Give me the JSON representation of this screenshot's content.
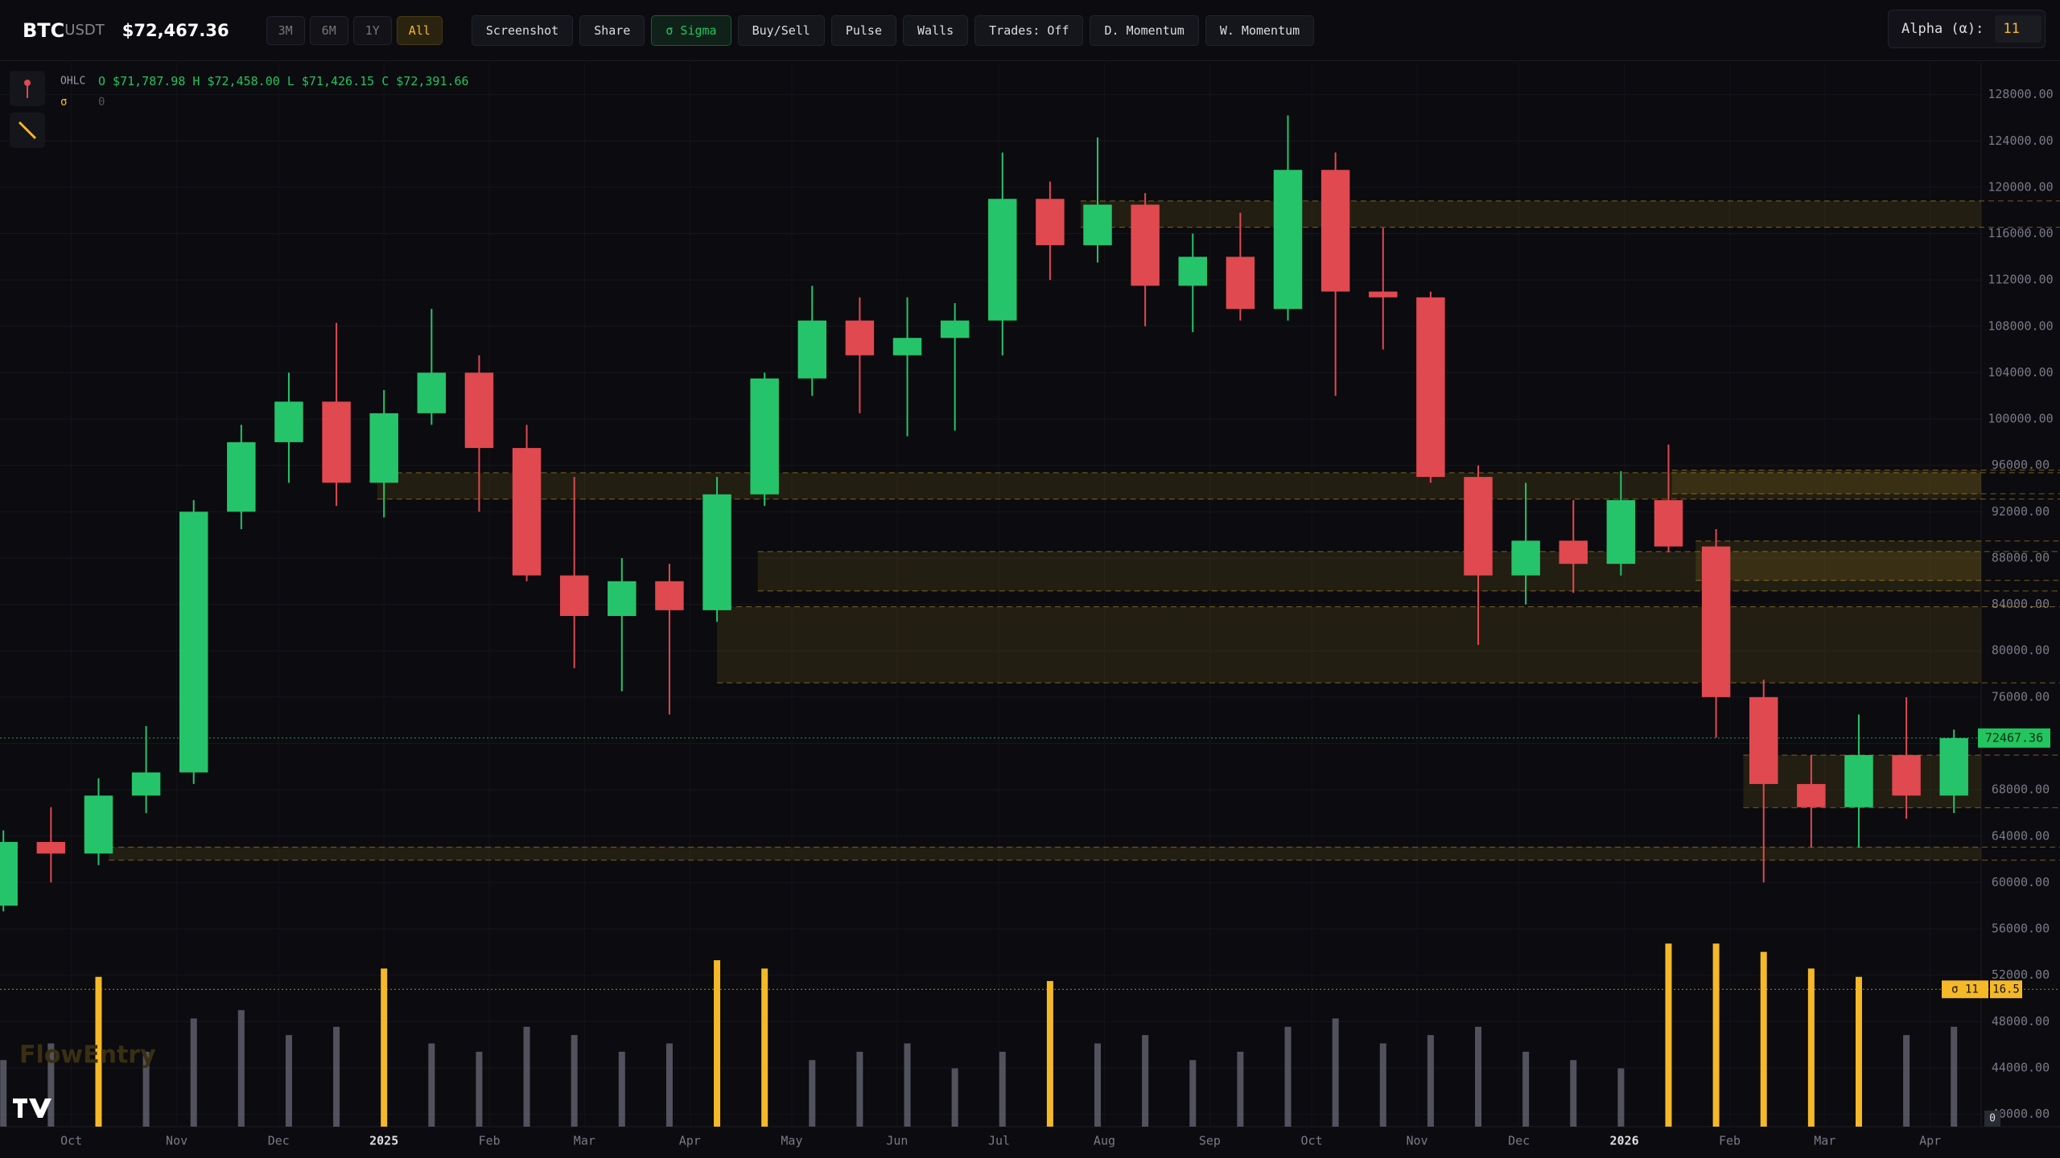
{
  "header": {
    "symbol": "BTC",
    "quote": "USDT",
    "price": "$72,467.36",
    "ranges": [
      "3M",
      "6M",
      "1Y",
      "All"
    ],
    "active_range": 3,
    "buttons": [
      "Screenshot",
      "Share",
      "σ Sigma",
      "Buy/Sell",
      "Pulse",
      "Walls",
      "Trades: Off",
      "D. Momentum",
      "W. Momentum"
    ],
    "alpha_label": "Alpha (α):",
    "alpha_value": "11"
  },
  "legend": {
    "label": "OHLC",
    "open": "O $71,787.98",
    "high": "H $72,458.00",
    "low": "L $71,426.15",
    "close": "C $72,391.66",
    "sigma": "σ",
    "sigma_value": "0"
  },
  "watermark": "FlowEntry",
  "chart_data": {
    "type": "candlestick",
    "x": [
      "2024-09-11",
      "2024-09-25",
      "2024-10-09",
      "2024-10-23",
      "2024-11-06",
      "2024-11-20",
      "2024-12-04",
      "2024-12-18",
      "2025-01-01",
      "2025-01-15",
      "2025-01-29",
      "2025-02-12",
      "2025-02-26",
      "2025-03-12",
      "2025-03-26",
      "2025-04-09",
      "2025-04-23",
      "2025-05-07",
      "2025-05-21",
      "2025-06-04",
      "2025-06-18",
      "2025-07-02",
      "2025-07-16",
      "2025-07-30",
      "2025-08-13",
      "2025-08-27",
      "2025-09-10",
      "2025-09-24",
      "2025-10-08",
      "2025-10-22",
      "2025-11-05",
      "2025-11-19",
      "2025-12-03",
      "2025-12-17",
      "2025-12-31",
      "2026-01-14",
      "2026-01-28",
      "2026-02-11",
      "2026-02-25",
      "2026-03-11",
      "2026-03-25",
      "2026-04-08"
    ],
    "open": [
      58000,
      63500,
      62500,
      67500,
      69500,
      92000,
      98000,
      101500,
      94500,
      100500,
      104000,
      97500,
      86500,
      83000,
      86000,
      83500,
      93500,
      103500,
      108500,
      105500,
      107000,
      108500,
      119000,
      115000,
      118500,
      111500,
      114000,
      109500,
      121500,
      111000,
      110500,
      95000,
      86500,
      89500,
      87500,
      93000,
      89000,
      76000,
      68500,
      66500,
      71000,
      67500
    ],
    "high": [
      64500,
      66500,
      69000,
      73500,
      93000,
      99500,
      104000,
      108300,
      102500,
      109500,
      105500,
      99500,
      95000,
      88000,
      87500,
      95000,
      104000,
      111500,
      110500,
      110500,
      110000,
      123000,
      120500,
      124300,
      119500,
      116000,
      117800,
      126200,
      123000,
      116500,
      111000,
      96000,
      94500,
      93000,
      95500,
      97800,
      90500,
      77500,
      71000,
      74500,
      76000,
      73200
    ],
    "low": [
      57500,
      60000,
      61500,
      66000,
      68500,
      90500,
      94500,
      92500,
      91500,
      99500,
      92000,
      86000,
      78500,
      76500,
      74500,
      82500,
      92500,
      102000,
      100500,
      98500,
      99000,
      105500,
      112000,
      113500,
      108000,
      107500,
      108500,
      108500,
      102000,
      106000,
      94500,
      80500,
      84000,
      85000,
      86500,
      88500,
      72500,
      60000,
      63000,
      63000,
      65500,
      66000
    ],
    "close": [
      63500,
      62500,
      67500,
      69500,
      92000,
      98000,
      101500,
      94500,
      100500,
      104000,
      97500,
      86500,
      83000,
      86000,
      83500,
      93500,
      103500,
      108500,
      105500,
      107000,
      108500,
      119000,
      115000,
      118500,
      111500,
      114000,
      109500,
      121500,
      111000,
      110500,
      95000,
      86500,
      89500,
      87500,
      93000,
      89000,
      76000,
      68500,
      66500,
      71000,
      67500,
      72467.36
    ],
    "up_color": "#26c46a",
    "down_color": "#e0494f",
    "xlim": [
      "2024-09-10",
      "2026-04-16"
    ],
    "xticks": [
      {
        "value": "2024-10-01",
        "label": "Oct"
      },
      {
        "value": "2024-11-01",
        "label": "Nov"
      },
      {
        "value": "2024-12-01",
        "label": "Dec"
      },
      {
        "value": "2025-01-01",
        "label": "2025"
      },
      {
        "value": "2025-02-01",
        "label": "Feb"
      },
      {
        "value": "2025-03-01",
        "label": "Mar"
      },
      {
        "value": "2025-04-01",
        "label": "Apr"
      },
      {
        "value": "2025-05-01",
        "label": "May"
      },
      {
        "value": "2025-06-01",
        "label": "Jun"
      },
      {
        "value": "2025-07-01",
        "label": "Jul"
      },
      {
        "value": "2025-08-01",
        "label": "Aug"
      },
      {
        "value": "2025-09-01",
        "label": "Sep"
      },
      {
        "value": "2025-10-01",
        "label": "Oct"
      },
      {
        "value": "2025-11-01",
        "label": "Nov"
      },
      {
        "value": "2025-12-01",
        "label": "Dec"
      },
      {
        "value": "2026-01-01",
        "label": "2026"
      },
      {
        "value": "2026-02-01",
        "label": "Feb"
      },
      {
        "value": "2026-03-01",
        "label": "Mar"
      },
      {
        "value": "2026-04-01",
        "label": "Apr"
      }
    ],
    "ylim": [
      38930,
      130750
    ],
    "yticks": [
      {
        "value": 40000,
        "label": "40000.00"
      },
      {
        "value": 44000,
        "label": "44000.00"
      },
      {
        "value": 48000,
        "label": "48000.00"
      },
      {
        "value": 52000,
        "label": "52000.00"
      },
      {
        "value": 56000,
        "label": "56000.00"
      },
      {
        "value": 60000,
        "label": "60000.00"
      },
      {
        "value": 64000,
        "label": "64000.00"
      },
      {
        "value": 68000,
        "label": "68000.00"
      },
      {
        "value": 72000,
        "label": "72000.00"
      },
      {
        "value": 76000,
        "label": "76000.00"
      },
      {
        "value": 80000,
        "label": "80000.00"
      },
      {
        "value": 84000,
        "label": "84000.00"
      },
      {
        "value": 88000,
        "label": "88000.00"
      },
      {
        "value": 92000,
        "label": "92000.00"
      },
      {
        "value": 96000,
        "label": "96000.00"
      },
      {
        "value": 100000,
        "label": "100000.00"
      },
      {
        "value": 104000,
        "label": "104000.00"
      },
      {
        "value": 108000,
        "label": "108000.00"
      },
      {
        "value": 112000,
        "label": "112000.00"
      },
      {
        "value": 116000,
        "label": "116000.00"
      },
      {
        "value": 120000,
        "label": "120000.00"
      },
      {
        "value": 124000,
        "label": "124000.00"
      },
      {
        "value": 128000,
        "label": "128000.00"
      }
    ],
    "grid": true,
    "last_price": 72467.36,
    "last_price_color": "#22c55e",
    "zone_color": "#c9a227",
    "zones": [
      {
        "start": "2025-07-25",
        "low": 116550,
        "high": 118820
      },
      {
        "start": "2024-12-30",
        "low": 93090,
        "high": 95360
      },
      {
        "start": "2025-04-21",
        "low": 85160,
        "high": 88560
      },
      {
        "start": "2025-04-09",
        "low": 77230,
        "high": 83800
      },
      {
        "start": "2024-10-12",
        "low": 61930,
        "high": 63060
      },
      {
        "start": "2026-02-05",
        "low": 66460,
        "high": 70990
      },
      {
        "start": "2026-01-15",
        "low": 93550,
        "high": 95590
      },
      {
        "start": "2026-01-22",
        "low": 86070,
        "high": 89470
      }
    ],
    "volume": {
      "values": [
        8,
        10,
        18,
        9,
        13,
        14,
        11,
        12,
        19,
        10,
        9,
        12,
        11,
        9,
        10,
        20,
        19,
        8,
        9,
        10,
        7,
        9,
        17.5,
        10,
        11,
        8,
        9,
        12,
        13,
        10,
        11,
        12,
        9,
        8,
        7,
        22,
        22,
        21,
        19,
        18,
        11,
        12
      ],
      "vlim": [
        0,
        23
      ],
      "vticks": [
        0
      ],
      "threshold": 16.5,
      "threshold_label": "σ 11",
      "color": "#6b6b78",
      "spike_color": "#f5b829"
    }
  }
}
